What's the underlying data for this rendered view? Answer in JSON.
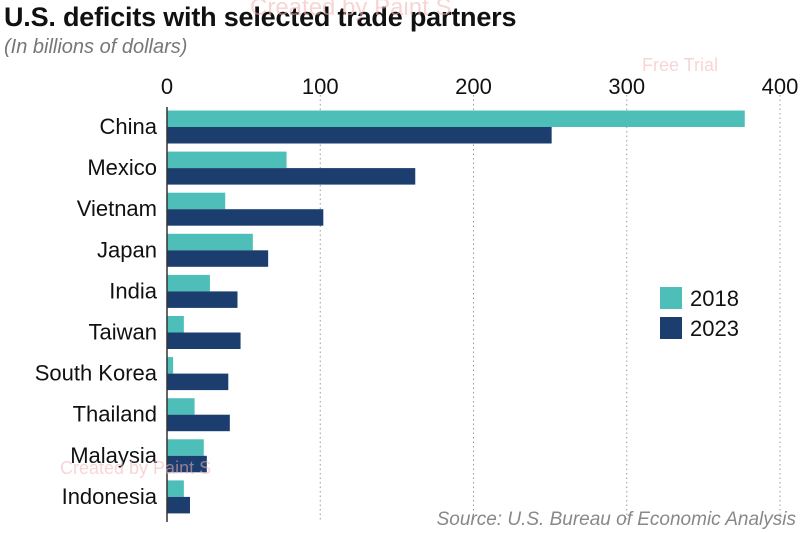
{
  "title": "U.S. deficits with selected trade partners",
  "subtitle": "(In billions of dollars)",
  "source": "Source: U.S. Bureau of Economic Analysis",
  "watermarks": [
    "Created by Paint S",
    "Free Trial",
    "Created by Paint S"
  ],
  "colors": {
    "series_2018": "#4dbfb8",
    "series_2023": "#1c3e6e",
    "grid": "#9a9a9a",
    "text": "#111111"
  },
  "chart_data": {
    "type": "bar",
    "orientation": "horizontal",
    "title": "U.S. deficits with selected trade partners",
    "subtitle": "(In billions of dollars)",
    "categories": [
      "China",
      "Mexico",
      "Vietnam",
      "Japan",
      "India",
      "Taiwan",
      "South Korea",
      "Thailand",
      "Malaysia",
      "Indonesia"
    ],
    "series": [
      {
        "name": "2018",
        "values": [
          377,
          78,
          38,
          56,
          28,
          11,
          4,
          18,
          24,
          11
        ]
      },
      {
        "name": "2023",
        "values": [
          251,
          162,
          102,
          66,
          46,
          48,
          40,
          41,
          26,
          15
        ]
      }
    ],
    "xlim": [
      0,
      400
    ],
    "xticks": [
      0,
      100,
      200,
      300,
      400
    ],
    "grid": true,
    "legend_position": "right"
  }
}
